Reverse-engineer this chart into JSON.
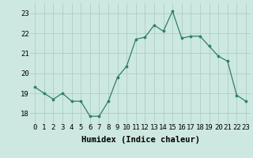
{
  "x": [
    0,
    1,
    2,
    3,
    4,
    5,
    6,
    7,
    8,
    9,
    10,
    11,
    12,
    13,
    14,
    15,
    16,
    17,
    18,
    19,
    20,
    21,
    22,
    23
  ],
  "y": [
    19.3,
    19.0,
    18.7,
    19.0,
    18.6,
    18.6,
    17.85,
    17.85,
    18.6,
    19.8,
    20.35,
    21.7,
    21.8,
    22.4,
    22.1,
    23.1,
    21.75,
    21.85,
    21.85,
    21.35,
    20.85,
    20.6,
    18.9,
    18.6
  ],
  "line_color": "#2e7d6e",
  "marker_color": "#2e7d6e",
  "bg_color": "#cde8e0",
  "grid_color": "#aacfc6",
  "xlabel": "Humidex (Indice chaleur)",
  "ylim": [
    17.5,
    23.5
  ],
  "xlim": [
    -0.5,
    23.5
  ],
  "yticks": [
    18,
    19,
    20,
    21,
    22,
    23
  ],
  "xticks": [
    0,
    1,
    2,
    3,
    4,
    5,
    6,
    7,
    8,
    9,
    10,
    11,
    12,
    13,
    14,
    15,
    16,
    17,
    18,
    19,
    20,
    21,
    22,
    23
  ],
  "tick_label_fontsize": 6.5,
  "xlabel_fontsize": 7.5
}
